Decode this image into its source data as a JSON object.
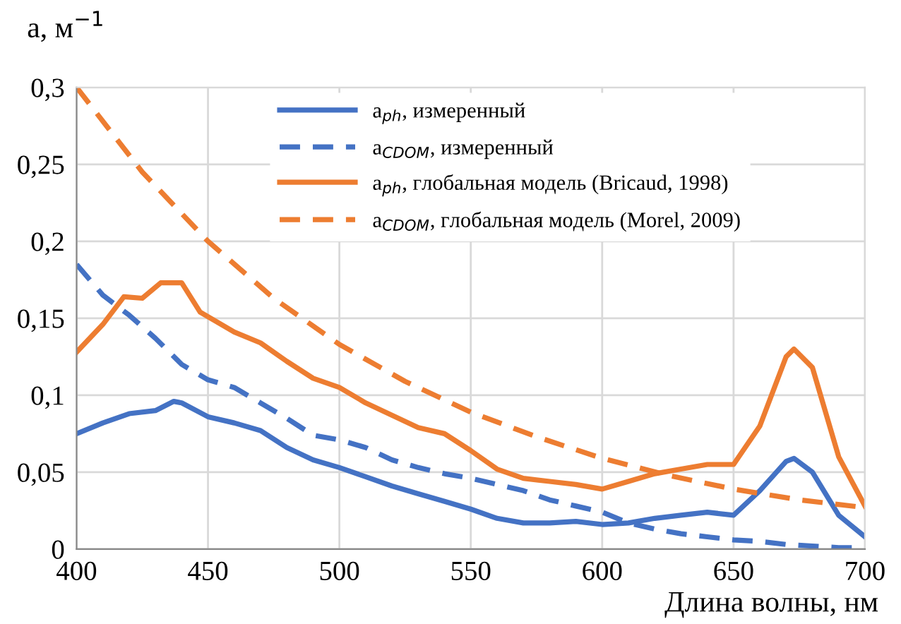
{
  "chart_data": {
    "type": "line",
    "xlabel": "Длина волны, нм",
    "ylabel": "a, м$^{−1}$",
    "xlim": [
      400,
      700
    ],
    "xticks": [
      400,
      450,
      500,
      550,
      600,
      650,
      700
    ],
    "ylim": [
      0,
      0.3
    ],
    "yticks": [
      {
        "value": 0,
        "label": "0"
      },
      {
        "value": 0.05,
        "label": "0,05"
      },
      {
        "value": 0.1,
        "label": "0,1"
      },
      {
        "value": 0.15,
        "label": "0,15"
      },
      {
        "value": 0.2,
        "label": "0,2"
      },
      {
        "value": 0.25,
        "label": "0,25"
      },
      {
        "value": 0.3,
        "label": "0,3"
      }
    ],
    "grid": true,
    "legend": "top",
    "marker": "none",
    "series": [
      {
        "name": "a$_{ph}$, измеренный",
        "color": "#4472c4",
        "line_style": "solid",
        "x": [
          400,
          410,
          420,
          430,
          437,
          440,
          450,
          460,
          470,
          480,
          490,
          500,
          510,
          520,
          530,
          540,
          550,
          560,
          570,
          580,
          590,
          600,
          610,
          620,
          630,
          640,
          650,
          660,
          670,
          673,
          680,
          690,
          700
        ],
        "values": [
          0.075,
          0.082,
          0.088,
          0.09,
          0.096,
          0.095,
          0.086,
          0.082,
          0.077,
          0.066,
          0.058,
          0.053,
          0.047,
          0.041,
          0.036,
          0.031,
          0.026,
          0.02,
          0.017,
          0.017,
          0.018,
          0.016,
          0.017,
          0.02,
          0.022,
          0.024,
          0.022,
          0.038,
          0.057,
          0.059,
          0.05,
          0.022,
          0.008
        ]
      },
      {
        "name": "a$_{CDOM}$, измеренный",
        "color": "#4472c4",
        "line_style": "dashed",
        "x": [
          400,
          410,
          420,
          430,
          440,
          450,
          460,
          470,
          480,
          490,
          500,
          510,
          520,
          530,
          540,
          550,
          560,
          570,
          580,
          590,
          600,
          610,
          620,
          630,
          640,
          650,
          660,
          670,
          680,
          690,
          700
        ],
        "values": [
          0.185,
          0.165,
          0.152,
          0.137,
          0.12,
          0.11,
          0.105,
          0.095,
          0.085,
          0.074,
          0.071,
          0.066,
          0.058,
          0.053,
          0.049,
          0.046,
          0.042,
          0.038,
          0.032,
          0.028,
          0.024,
          0.017,
          0.013,
          0.01,
          0.008,
          0.006,
          0.005,
          0.003,
          0.002,
          0.001,
          0.001
        ]
      },
      {
        "name": "a$_{ph}$, глобальная модель (Bricaud, 1998)",
        "color": "#ed7d31",
        "line_style": "solid",
        "x": [
          400,
          410,
          418,
          425,
          432,
          440,
          447,
          460,
          470,
          480,
          490,
          500,
          510,
          520,
          530,
          540,
          550,
          560,
          570,
          580,
          590,
          600,
          610,
          620,
          630,
          640,
          650,
          660,
          670,
          673,
          680,
          690,
          700
        ],
        "values": [
          0.128,
          0.146,
          0.164,
          0.163,
          0.173,
          0.173,
          0.154,
          0.141,
          0.134,
          0.122,
          0.111,
          0.105,
          0.095,
          0.087,
          0.079,
          0.075,
          0.064,
          0.052,
          0.046,
          0.044,
          0.042,
          0.039,
          0.044,
          0.049,
          0.052,
          0.055,
          0.055,
          0.08,
          0.125,
          0.13,
          0.118,
          0.06,
          0.028
        ]
      },
      {
        "name": "a$_{CDOM}$, глобальная модель (Morel, 2009)",
        "color": "#ed7d31",
        "line_style": "dashed",
        "x": [
          400,
          425,
          450,
          475,
          500,
          525,
          550,
          575,
          600,
          625,
          650,
          675,
          700
        ],
        "values": [
          0.3,
          0.245,
          0.2,
          0.163,
          0.133,
          0.109,
          0.089,
          0.073,
          0.059,
          0.048,
          0.039,
          0.032,
          0.027
        ]
      }
    ]
  }
}
